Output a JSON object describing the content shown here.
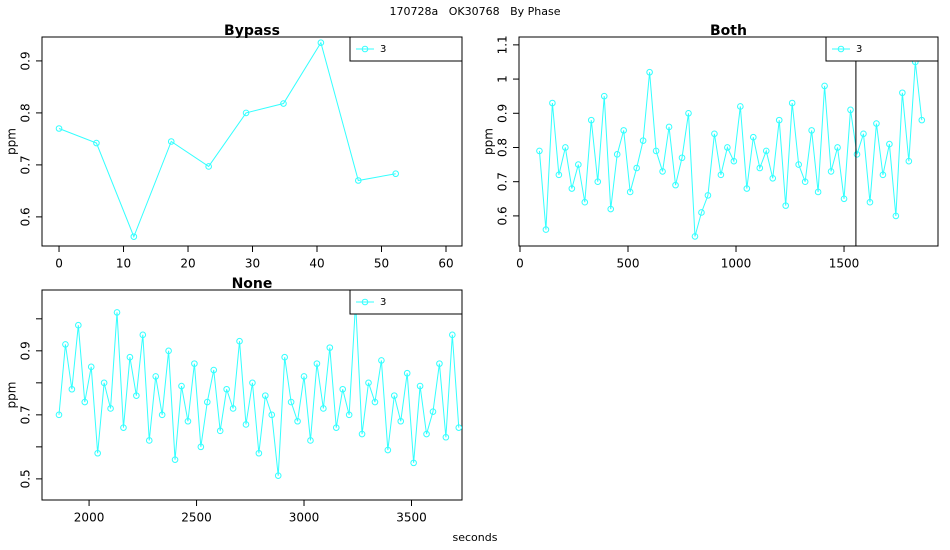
{
  "title": "170728a   OK30768   By Phase",
  "xlabel": "seconds",
  "chart_data": [
    {
      "type": "line",
      "title": "Bypass",
      "ylabel": "ppm",
      "x": [
        0,
        5.8,
        11.6,
        17.4,
        23.2,
        29,
        34.8,
        40.6,
        46.4,
        52.2
      ],
      "series": [
        {
          "name": "3",
          "color": "#33ffff",
          "values": [
            0.77,
            0.742,
            0.562,
            0.745,
            0.697,
            0.8,
            0.818,
            0.935,
            0.67,
            0.683
          ]
        }
      ],
      "xlim": [
        -2.64,
        62.48
      ],
      "xticks": [
        0,
        10,
        20,
        30,
        40,
        50,
        60
      ],
      "ylim": [
        0.544,
        0.946
      ],
      "yticks": [
        0.6,
        0.7,
        0.8,
        0.9
      ],
      "legend": "top-right"
    },
    {
      "type": "line",
      "title": "Both",
      "ylabel": "ppm",
      "x": [
        90,
        120,
        150,
        180,
        210,
        240,
        270,
        300,
        330,
        360,
        390,
        420,
        450,
        480,
        510,
        540,
        570,
        600,
        630,
        660,
        690,
        720,
        750,
        780,
        810,
        840,
        870,
        900,
        930,
        960,
        990,
        1020,
        1050,
        1080,
        1110,
        1140,
        1170,
        1200,
        1230,
        1260,
        1290,
        1320,
        1350,
        1380,
        1410,
        1440,
        1470,
        1500,
        1530,
        1560,
        1590,
        1620,
        1650,
        1680,
        1710,
        1740,
        1770,
        1800,
        1830,
        1860
      ],
      "series": [
        {
          "name": "3",
          "color": "#33ffff",
          "values": [
            0.79,
            0.56,
            0.93,
            0.72,
            0.8,
            0.68,
            0.75,
            0.64,
            0.88,
            0.7,
            0.95,
            0.62,
            0.78,
            0.85,
            0.67,
            0.74,
            0.82,
            1.02,
            0.79,
            0.73,
            0.86,
            0.69,
            0.77,
            0.9,
            0.54,
            0.61,
            0.66,
            0.84,
            0.72,
            0.8,
            0.76,
            0.92,
            0.68,
            0.83,
            0.74,
            0.79,
            0.71,
            0.88,
            0.63,
            0.93,
            0.75,
            0.7,
            0.85,
            0.67,
            0.98,
            0.73,
            0.8,
            0.65,
            0.91,
            0.78,
            0.84,
            0.64,
            0.87,
            0.72,
            0.81,
            0.6,
            0.96,
            0.76,
            1.05,
            0.88
          ]
        }
      ],
      "vlines": [
        1555
      ],
      "xlim": [
        -4.6,
        1935
      ],
      "xticks": [
        0,
        500,
        1000,
        1500
      ],
      "ylim": [
        0.512,
        1.123
      ],
      "yticks": [
        0.6,
        0.7,
        0.8,
        0.9,
        1.0,
        1.1
      ],
      "legend": "top-right"
    },
    {
      "type": "line",
      "title": "None",
      "ylabel": "ppm",
      "x": [
        1860,
        1890,
        1920,
        1950,
        1980,
        2010,
        2040,
        2070,
        2100,
        2130,
        2160,
        2190,
        2220,
        2250,
        2280,
        2310,
        2340,
        2370,
        2400,
        2430,
        2460,
        2490,
        2520,
        2550,
        2580,
        2610,
        2640,
        2670,
        2700,
        2730,
        2760,
        2790,
        2820,
        2850,
        2880,
        2910,
        2940,
        2970,
        3000,
        3030,
        3060,
        3090,
        3120,
        3150,
        3180,
        3210,
        3240,
        3270,
        3300,
        3330,
        3360,
        3390,
        3420,
        3450,
        3480,
        3510,
        3540,
        3570,
        3600,
        3630,
        3660,
        3690,
        3720
      ],
      "series": [
        {
          "name": "3",
          "color": "#33ffff",
          "values": [
            0.7,
            0.92,
            0.78,
            0.98,
            0.74,
            0.85,
            0.58,
            0.8,
            0.72,
            1.02,
            0.66,
            0.88,
            0.76,
            0.95,
            0.62,
            0.82,
            0.7,
            0.9,
            0.56,
            0.79,
            0.68,
            0.86,
            0.6,
            0.74,
            0.84,
            0.65,
            0.78,
            0.72,
            0.93,
            0.67,
            0.8,
            0.58,
            0.76,
            0.7,
            0.51,
            0.88,
            0.74,
            0.68,
            0.82,
            0.62,
            0.86,
            0.72,
            0.91,
            0.66,
            0.78,
            0.7,
            1.05,
            0.64,
            0.8,
            0.74,
            0.87,
            0.59,
            0.76,
            0.68,
            0.83,
            0.55,
            0.79,
            0.64,
            0.71,
            0.86,
            0.63,
            0.95,
            0.66
          ]
        }
      ],
      "xlim": [
        1781,
        3735
      ],
      "xticks": [
        2000,
        2500,
        3000,
        3500
      ],
      "ylim": [
        0.434,
        1.09
      ],
      "yticks": [
        0.5,
        0.7,
        0.9
      ],
      "yminorticks": [
        0.6,
        0.8,
        1.0
      ],
      "legend": "top-right"
    }
  ]
}
